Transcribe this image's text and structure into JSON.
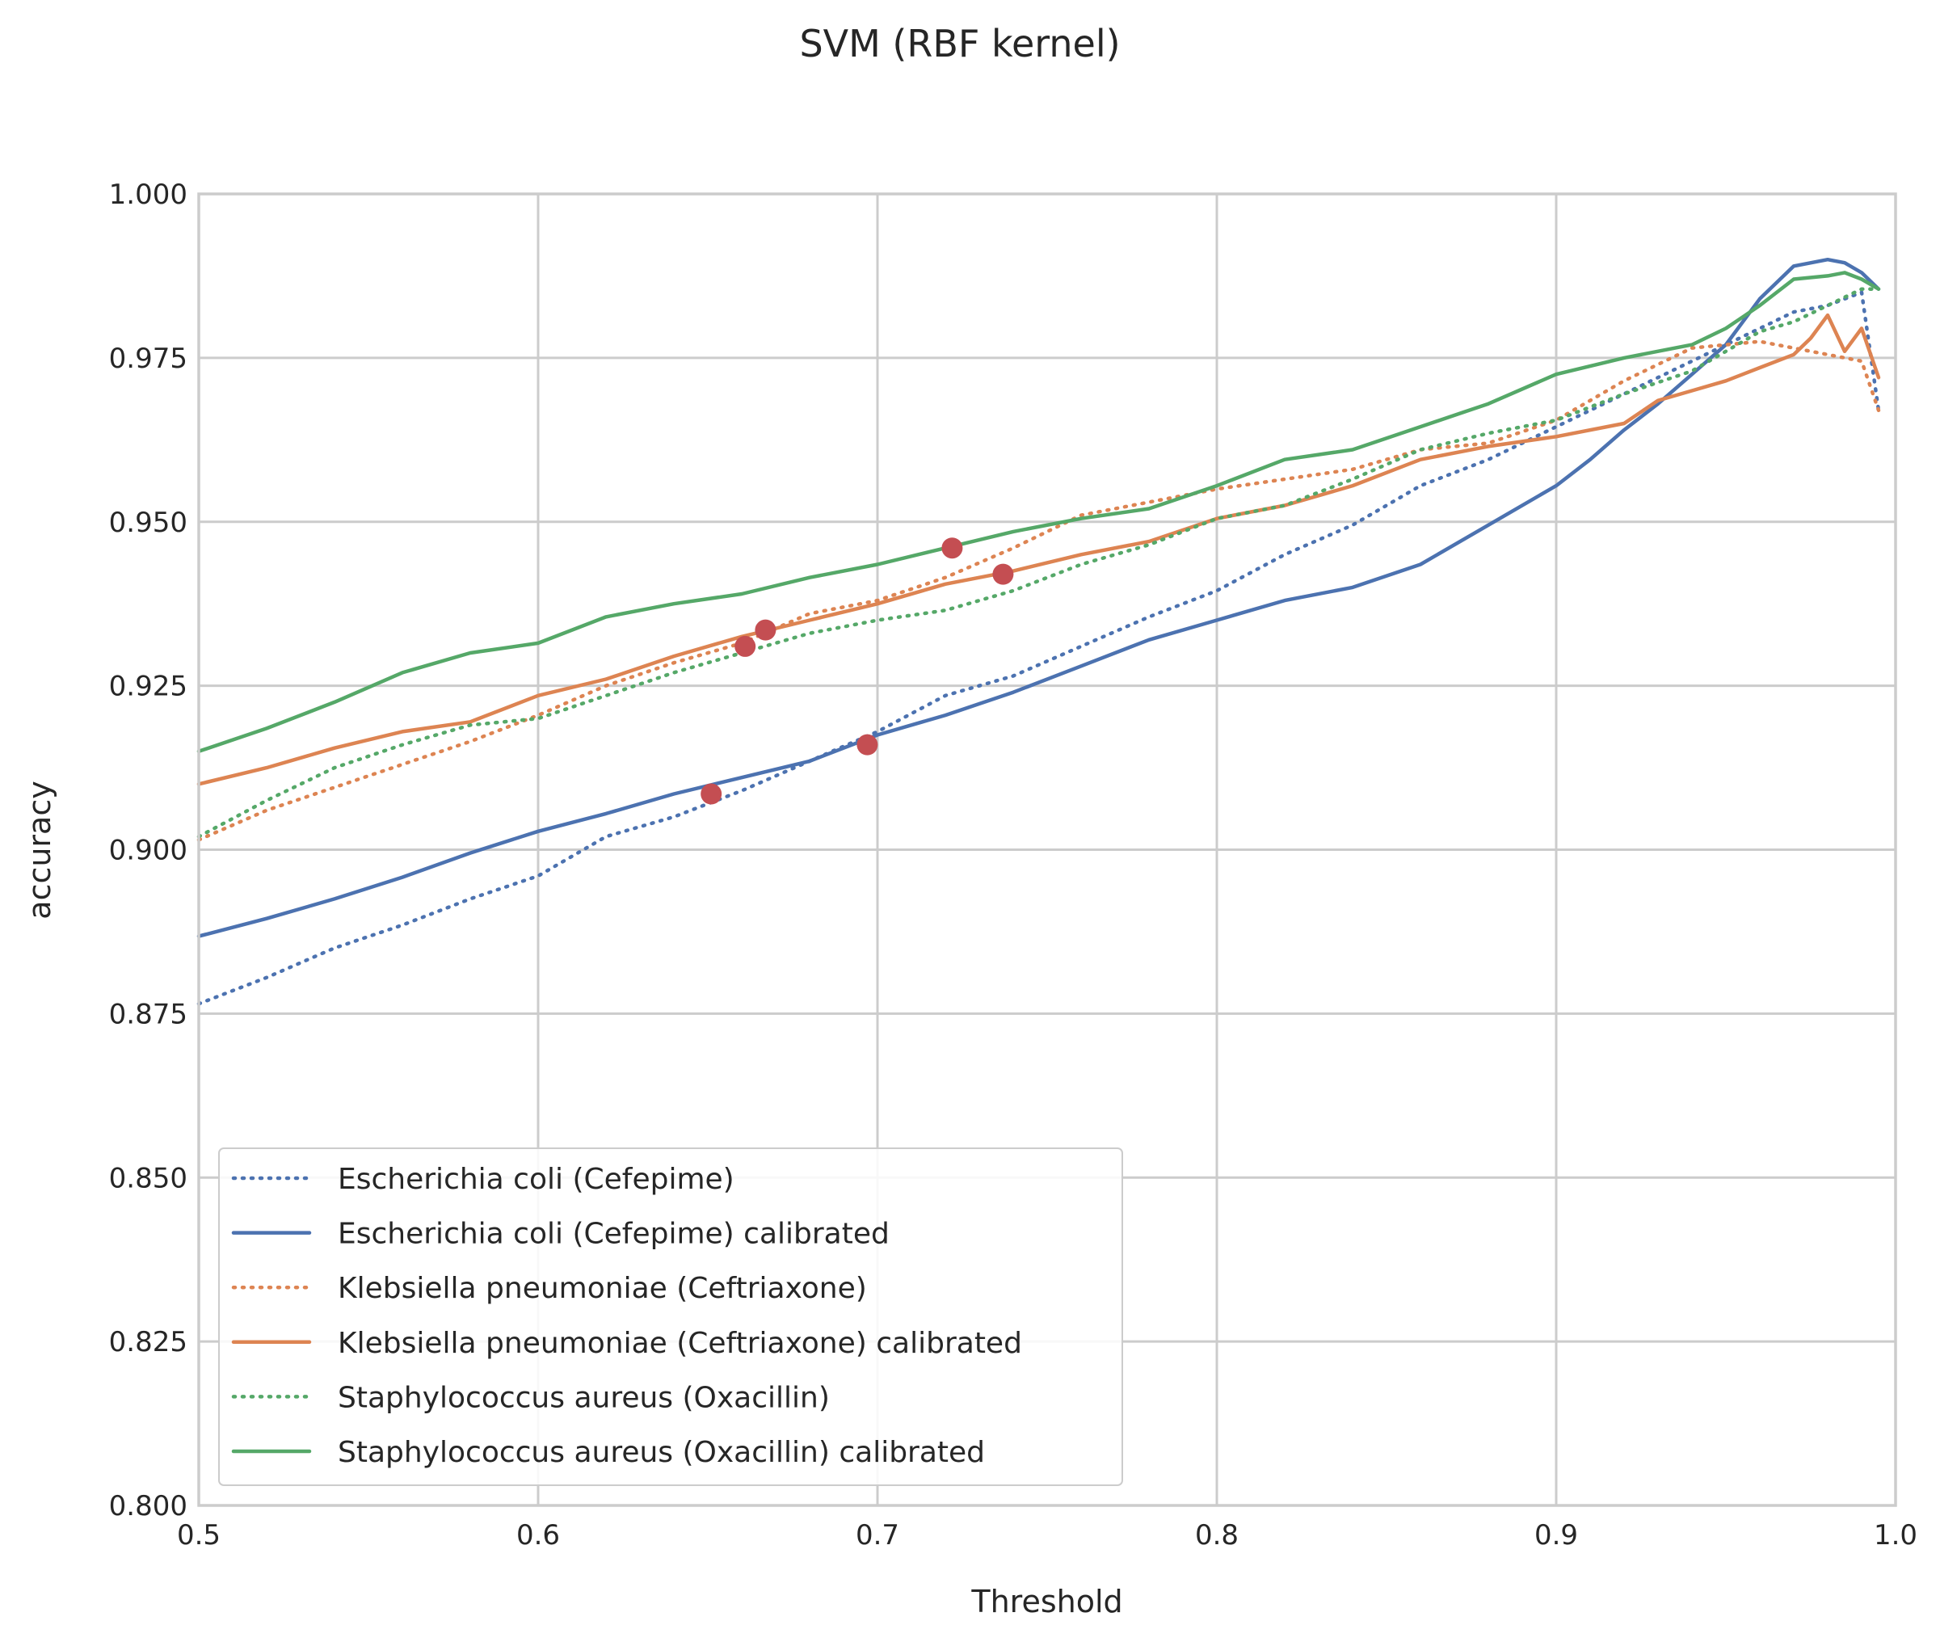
{
  "chart_data": {
    "type": "line",
    "title": "SVM (RBF kernel)",
    "xlabel": "Threshold",
    "ylabel": "accuracy",
    "xlim": [
      0.5,
      1.0
    ],
    "ylim": [
      0.8,
      1.0
    ],
    "xticks": [
      "0.5",
      "0.6",
      "0.7",
      "0.8",
      "0.9",
      "1.0"
    ],
    "yticks": [
      "0.800",
      "0.825",
      "0.850",
      "0.875",
      "0.900",
      "0.925",
      "0.950",
      "0.975",
      "1.000"
    ],
    "grid": true,
    "legend_position": "lower-left",
    "series": [
      {
        "name": "Escherichia coli (Cefepime)",
        "color": "#4c72b0",
        "style": "dotted",
        "x": [
          0.5,
          0.52,
          0.54,
          0.56,
          0.58,
          0.6,
          0.62,
          0.64,
          0.66,
          0.68,
          0.7,
          0.72,
          0.74,
          0.76,
          0.78,
          0.8,
          0.82,
          0.84,
          0.86,
          0.88,
          0.9,
          0.92,
          0.94,
          0.95,
          0.96,
          0.97,
          0.98,
          0.99,
          0.995
        ],
        "y": [
          0.8765,
          0.8805,
          0.885,
          0.8885,
          0.8925,
          0.896,
          0.902,
          0.905,
          0.909,
          0.9135,
          0.918,
          0.9235,
          0.9265,
          0.931,
          0.9355,
          0.9395,
          0.945,
          0.9495,
          0.9555,
          0.9595,
          0.9645,
          0.9695,
          0.9745,
          0.977,
          0.9795,
          0.982,
          0.983,
          0.985,
          0.967
        ]
      },
      {
        "name": "Escherichia coli (Cefepime) calibrated",
        "color": "#4c72b0",
        "style": "solid",
        "x": [
          0.5,
          0.52,
          0.54,
          0.56,
          0.58,
          0.6,
          0.62,
          0.64,
          0.66,
          0.68,
          0.7,
          0.72,
          0.74,
          0.76,
          0.78,
          0.8,
          0.82,
          0.84,
          0.86,
          0.88,
          0.9,
          0.91,
          0.92,
          0.93,
          0.94,
          0.95,
          0.96,
          0.97,
          0.98,
          0.985,
          0.99,
          0.995
        ],
        "y": [
          0.8868,
          0.8895,
          0.8925,
          0.8958,
          0.8995,
          0.9028,
          0.9055,
          0.9085,
          0.911,
          0.9135,
          0.9175,
          0.9205,
          0.924,
          0.928,
          0.932,
          0.935,
          0.938,
          0.94,
          0.9435,
          0.9495,
          0.9555,
          0.9595,
          0.964,
          0.968,
          0.9725,
          0.977,
          0.984,
          0.989,
          0.99,
          0.9895,
          0.988,
          0.9855
        ]
      },
      {
        "name": "Klebsiella pneumoniae (Ceftriaxone)",
        "color": "#dd8452",
        "style": "dotted",
        "x": [
          0.5,
          0.52,
          0.54,
          0.56,
          0.58,
          0.6,
          0.62,
          0.64,
          0.66,
          0.68,
          0.7,
          0.72,
          0.74,
          0.76,
          0.78,
          0.8,
          0.82,
          0.84,
          0.86,
          0.88,
          0.9,
          0.92,
          0.94,
          0.96,
          0.98,
          0.99,
          0.995
        ],
        "y": [
          0.9015,
          0.906,
          0.9095,
          0.913,
          0.9165,
          0.9205,
          0.925,
          0.9285,
          0.9315,
          0.936,
          0.938,
          0.9415,
          0.946,
          0.951,
          0.953,
          0.955,
          0.9565,
          0.958,
          0.961,
          0.962,
          0.9655,
          0.9715,
          0.9765,
          0.9775,
          0.9755,
          0.9745,
          0.967
        ]
      },
      {
        "name": "Klebsiella pneumoniae (Ceftriaxone) calibrated",
        "color": "#dd8452",
        "style": "solid",
        "x": [
          0.5,
          0.52,
          0.54,
          0.56,
          0.58,
          0.6,
          0.62,
          0.64,
          0.66,
          0.68,
          0.7,
          0.72,
          0.74,
          0.76,
          0.78,
          0.8,
          0.82,
          0.84,
          0.86,
          0.88,
          0.9,
          0.92,
          0.93,
          0.94,
          0.95,
          0.96,
          0.97,
          0.975,
          0.98,
          0.985,
          0.99,
          0.995
        ],
        "y": [
          0.91,
          0.9125,
          0.9155,
          0.918,
          0.9195,
          0.9235,
          0.926,
          0.9295,
          0.9325,
          0.935,
          0.9375,
          0.9405,
          0.9425,
          0.945,
          0.947,
          0.9505,
          0.9525,
          0.9555,
          0.9595,
          0.9615,
          0.963,
          0.965,
          0.9685,
          0.97,
          0.9715,
          0.9735,
          0.9755,
          0.978,
          0.9815,
          0.976,
          0.9795,
          0.972
        ]
      },
      {
        "name": "Staphylococcus aureus (Oxacillin)",
        "color": "#55a868",
        "style": "dotted",
        "x": [
          0.5,
          0.52,
          0.54,
          0.56,
          0.58,
          0.6,
          0.62,
          0.64,
          0.66,
          0.68,
          0.7,
          0.72,
          0.74,
          0.76,
          0.78,
          0.8,
          0.82,
          0.84,
          0.86,
          0.88,
          0.9,
          0.92,
          0.94,
          0.96,
          0.97,
          0.98,
          0.99,
          0.995
        ],
        "y": [
          0.902,
          0.9075,
          0.9125,
          0.916,
          0.919,
          0.92,
          0.9235,
          0.927,
          0.93,
          0.933,
          0.935,
          0.9365,
          0.9395,
          0.9435,
          0.9465,
          0.9505,
          0.9525,
          0.9565,
          0.961,
          0.9635,
          0.9655,
          0.9695,
          0.973,
          0.979,
          0.9805,
          0.983,
          0.9855,
          0.9855
        ]
      },
      {
        "name": "Staphylococcus aureus (Oxacillin) calibrated",
        "color": "#55a868",
        "style": "solid",
        "x": [
          0.5,
          0.52,
          0.54,
          0.56,
          0.58,
          0.6,
          0.62,
          0.64,
          0.66,
          0.68,
          0.7,
          0.72,
          0.74,
          0.76,
          0.78,
          0.8,
          0.82,
          0.84,
          0.86,
          0.88,
          0.9,
          0.92,
          0.94,
          0.95,
          0.96,
          0.97,
          0.98,
          0.985,
          0.99,
          0.995
        ],
        "y": [
          0.915,
          0.9185,
          0.9225,
          0.927,
          0.93,
          0.9315,
          0.9355,
          0.9375,
          0.939,
          0.9415,
          0.9435,
          0.946,
          0.9485,
          0.9505,
          0.952,
          0.9555,
          0.9595,
          0.961,
          0.9645,
          0.968,
          0.9725,
          0.975,
          0.977,
          0.9795,
          0.983,
          0.987,
          0.9875,
          0.988,
          0.987,
          0.9855
        ]
      }
    ],
    "markers": {
      "color": "#c44e52",
      "points": [
        {
          "x": 0.651,
          "y": 0.9085
        },
        {
          "x": 0.661,
          "y": 0.931
        },
        {
          "x": 0.667,
          "y": 0.9335
        },
        {
          "x": 0.697,
          "y": 0.916
        },
        {
          "x": 0.722,
          "y": 0.946
        },
        {
          "x": 0.737,
          "y": 0.942
        }
      ]
    }
  }
}
